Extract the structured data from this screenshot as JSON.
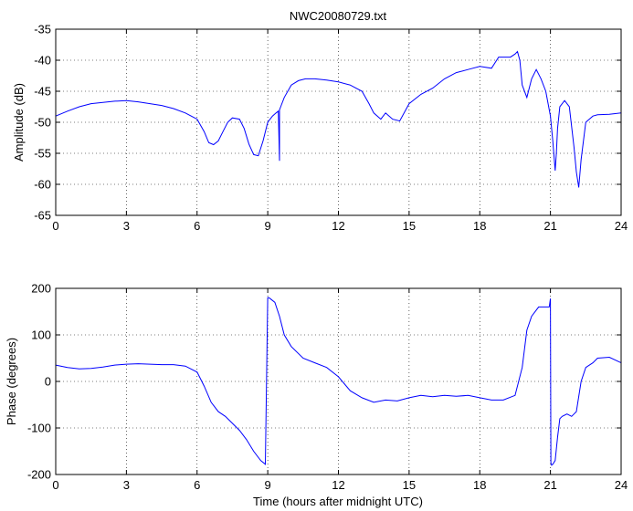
{
  "figure": {
    "title": "NWC20080729.txt",
    "line_color": "#0000ff"
  },
  "chart_data": [
    {
      "type": "line",
      "title": "NWC20080729.txt",
      "xlabel": "",
      "ylabel": "Amplitude (dB)",
      "xlim": [
        0,
        24
      ],
      "ylim": [
        -65,
        -35
      ],
      "xticks": [
        0,
        3,
        6,
        9,
        12,
        15,
        18,
        21,
        24
      ],
      "yticks": [
        -65,
        -60,
        -55,
        -50,
        -45,
        -40,
        -35
      ],
      "grid": true,
      "series": [
        {
          "x": [
            0,
            0.5,
            1,
            1.5,
            2,
            2.5,
            3,
            3.5,
            4,
            4.5,
            5,
            5.5,
            6,
            6.3,
            6.5,
            6.7,
            6.9,
            7.1,
            7.3,
            7.5,
            7.8,
            8.0,
            8.2,
            8.4,
            8.6,
            8.8,
            9.0,
            9.2,
            9.35,
            9.45,
            9.5,
            9.5,
            9.5,
            9.55,
            9.7,
            10.0,
            10.3,
            10.6,
            11.0,
            11.5,
            12.0,
            12.5,
            13.0,
            13.3,
            13.5,
            13.8,
            14.0,
            14.3,
            14.6,
            15.0,
            15.5,
            16.0,
            16.5,
            17.0,
            17.5,
            18.0,
            18.5,
            18.8,
            19.0,
            19.3,
            19.5,
            19.6,
            19.7,
            19.8,
            20.0,
            20.2,
            20.4,
            20.6,
            20.8,
            21.0,
            21.1,
            21.2,
            21.25,
            21.3,
            21.4,
            21.6,
            21.8,
            22.0,
            22.1,
            22.2,
            22.3,
            22.5,
            22.8,
            23.0,
            23.5,
            24.0
          ],
          "y": [
            -49,
            -48.2,
            -47.5,
            -47,
            -46.8,
            -46.6,
            -46.5,
            -46.7,
            -47,
            -47.3,
            -47.8,
            -48.5,
            -49.5,
            -51.5,
            -53.3,
            -53.6,
            -53,
            -51.5,
            -50,
            -49.3,
            -49.5,
            -51,
            -53.5,
            -55.2,
            -55.4,
            -53,
            -50,
            -49,
            -48.5,
            -48.2,
            -56.2,
            -48,
            -48,
            -47.5,
            -46,
            -44,
            -43.3,
            -43,
            -43,
            -43.2,
            -43.5,
            -44,
            -45,
            -47,
            -48.5,
            -49.5,
            -48.5,
            -49.5,
            -49.8,
            -47,
            -45.5,
            -44.5,
            -43,
            -42,
            -41.5,
            -41,
            -41.3,
            -39.5,
            -39.5,
            -39.5,
            -39,
            -38.6,
            -40,
            -44,
            -46,
            -43,
            -41.5,
            -43,
            -45,
            -49,
            -53,
            -57.8,
            -55,
            -51,
            -47.5,
            -46.5,
            -47.5,
            -54,
            -58,
            -60.5,
            -56,
            -50,
            -49,
            -48.8,
            -48.7,
            -48.5
          ]
        }
      ]
    },
    {
      "type": "line",
      "title": "",
      "xlabel": "Time (hours after midnight UTC)",
      "ylabel": "Phase (degrees)",
      "xlim": [
        0,
        24
      ],
      "ylim": [
        -200,
        200
      ],
      "xticks": [
        0,
        3,
        6,
        9,
        12,
        15,
        18,
        21,
        24
      ],
      "yticks": [
        -200,
        -100,
        0,
        100,
        200
      ],
      "grid": true,
      "series": [
        {
          "x": [
            0,
            0.5,
            1,
            1.5,
            2,
            2.5,
            3,
            3.5,
            4,
            4.5,
            5,
            5.5,
            6,
            6.3,
            6.6,
            6.9,
            7.2,
            7.5,
            7.8,
            8.1,
            8.4,
            8.7,
            8.9,
            9.0,
            9.05,
            9.1,
            9.3,
            9.5,
            9.7,
            10.0,
            10.5,
            11.0,
            11.5,
            12.0,
            12.5,
            13.0,
            13.5,
            14.0,
            14.5,
            15.0,
            15.5,
            16.0,
            16.5,
            17.0,
            17.5,
            18.0,
            18.5,
            19.0,
            19.5,
            19.8,
            20.0,
            20.2,
            20.5,
            20.8,
            20.95,
            21.0,
            21.02,
            21.05,
            21.1,
            21.2,
            21.3,
            21.4,
            21.5,
            21.7,
            21.9,
            22.0,
            22.1,
            22.3,
            22.5,
            22.8,
            23.0,
            23.5,
            24.0
          ],
          "y": [
            35,
            30,
            27,
            28,
            31,
            35,
            37,
            38,
            37,
            36,
            36,
            33,
            20,
            -10,
            -45,
            -65,
            -75,
            -90,
            -105,
            -125,
            -150,
            -170,
            -178,
            180,
            180,
            178,
            170,
            140,
            100,
            75,
            50,
            40,
            30,
            10,
            -20,
            -35,
            -45,
            -40,
            -42,
            -35,
            -30,
            -33,
            -30,
            -32,
            -30,
            -35,
            -40,
            -40,
            -30,
            30,
            110,
            140,
            160,
            160,
            160,
            178,
            -175,
            -180,
            -178,
            -170,
            -120,
            -80,
            -75,
            -70,
            -75,
            -70,
            -65,
            0,
            30,
            40,
            50,
            52,
            40
          ]
        }
      ]
    }
  ]
}
